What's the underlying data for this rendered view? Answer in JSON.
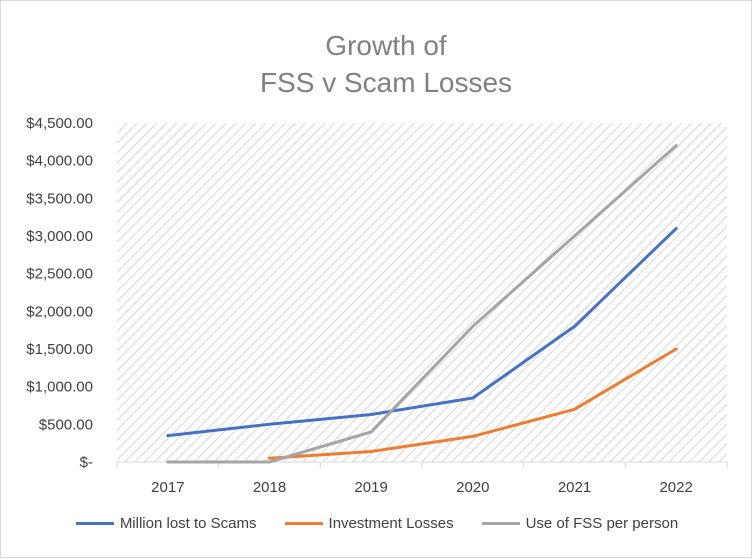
{
  "chart_data": {
    "type": "line",
    "title": [
      "Growth of",
      "FSS v Scam Losses"
    ],
    "xlabel": "",
    "ylabel": "",
    "categories": [
      "2017",
      "2018",
      "2019",
      "2020",
      "2021",
      "2022"
    ],
    "y_tick_values": [
      0,
      500,
      1000,
      1500,
      2000,
      2500,
      3000,
      3500,
      4000,
      4500
    ],
    "y_tick_labels": [
      "$-",
      "$500.00",
      "$1,000.00",
      "$1,500.00",
      "$2,000.00",
      "$2,500.00",
      "$3,000.00",
      "$3,500.00",
      "$4,000.00",
      "$4,500.00"
    ],
    "ylim": [
      0,
      4500
    ],
    "grid": false,
    "plot_background": "diagonal-hatch",
    "legend_position": "bottom",
    "series": [
      {
        "name": "Million lost to Scams",
        "color": "#4472c4",
        "values": [
          350,
          500,
          630,
          850,
          1800,
          3100
        ]
      },
      {
        "name": "Investment Losses",
        "color": "#ed7d31",
        "values": [
          null,
          50,
          140,
          340,
          700,
          1500
        ]
      },
      {
        "name": "Use of FSS per person",
        "color": "#a5a5a5",
        "values": [
          0,
          0,
          400,
          1800,
          3000,
          4200
        ]
      }
    ]
  }
}
